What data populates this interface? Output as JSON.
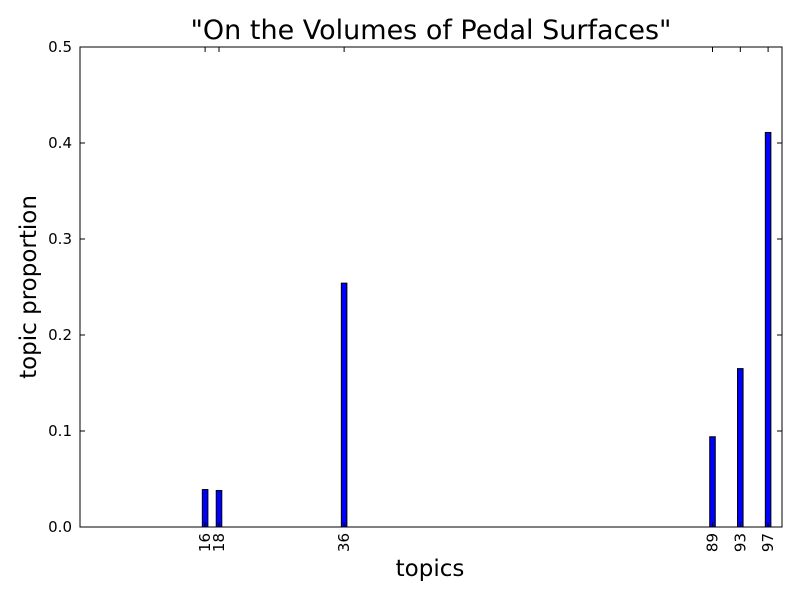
{
  "chart_data": {
    "type": "bar",
    "title": "\"On the Volumes of Pedal Surfaces\"",
    "xlabel": "topics",
    "ylabel": "topic proportion",
    "x_range": [
      -2,
      99
    ],
    "ylim": [
      0,
      0.5
    ],
    "yticks": [
      0.0,
      0.1,
      0.2,
      0.3,
      0.4,
      0.5
    ],
    "ytick_labels": [
      "0.0",
      "0.1",
      "0.2",
      "0.3",
      "0.4",
      "0.5"
    ],
    "xtick_rotation": "vertical",
    "grid": false,
    "bar_color": "#0000ff",
    "bar_edge_color": "#000000",
    "bars": [
      {
        "topic": 16,
        "label": "16",
        "value": 0.039
      },
      {
        "topic": 18,
        "label": "18",
        "value": 0.038
      },
      {
        "topic": 36,
        "label": "36",
        "value": 0.254
      },
      {
        "topic": 89,
        "label": "89",
        "value": 0.094
      },
      {
        "topic": 93,
        "label": "93",
        "value": 0.165
      },
      {
        "topic": 97,
        "label": "97",
        "value": 0.411
      }
    ]
  }
}
